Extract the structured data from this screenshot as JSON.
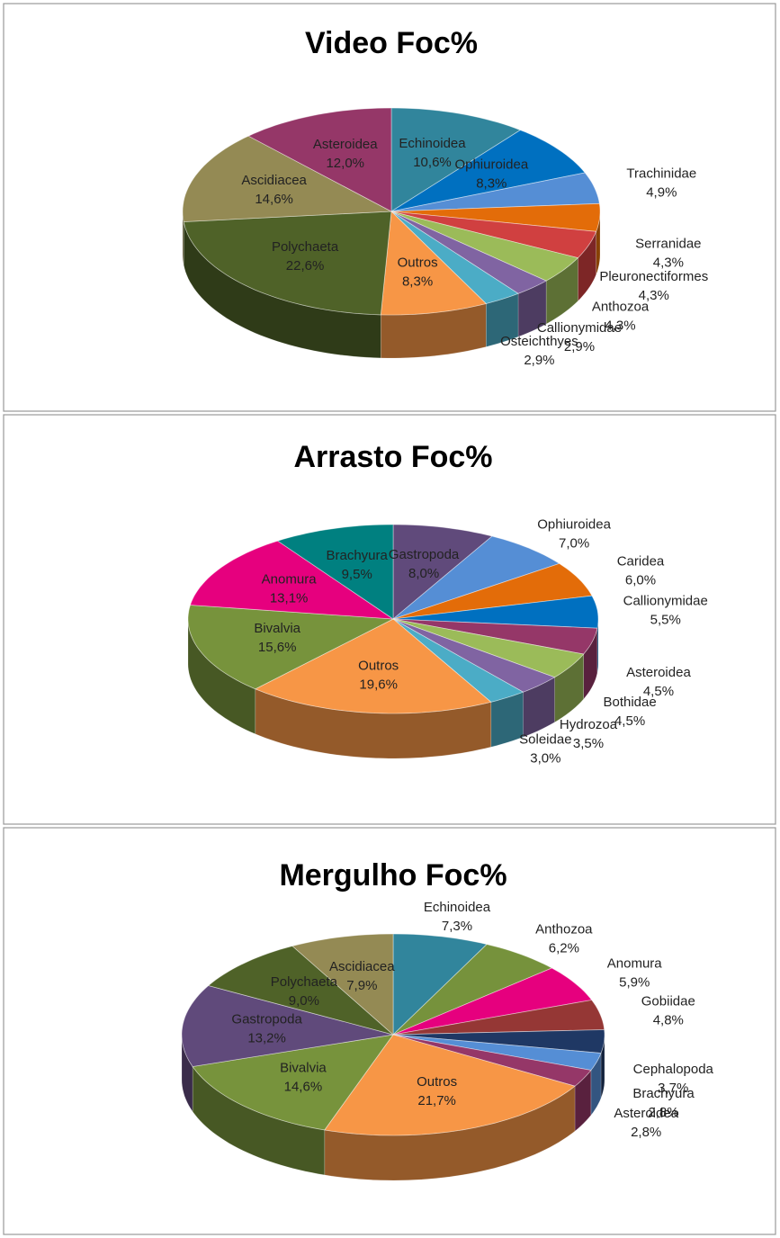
{
  "chart_data": [
    {
      "type": "pie",
      "title": "Video Foc%",
      "categories": [
        "Echinoidea",
        "Ophiuroidea",
        "Trachinidae",
        "Serranidae",
        "Pleuronectiformes",
        "Anthozoa",
        "Callionymidae",
        "Osteichthyes",
        "Outros",
        "Polychaeta",
        "Ascidiacea",
        "Asteroidea"
      ],
      "values": [
        10.6,
        8.3,
        4.9,
        4.3,
        4.3,
        4.3,
        2.9,
        2.9,
        8.3,
        22.6,
        14.6,
        12.0
      ],
      "value_labels": [
        "10,6%",
        "8,3%",
        "4,9%",
        "4,3%",
        "4,3%",
        "4,3%",
        "2,9%",
        "2,9%",
        "8,3%",
        "22,6%",
        "14,6%",
        "12,0%"
      ],
      "colors": [
        "#31859c",
        "#0070c0",
        "#558ed5",
        "#e36c09",
        "#d04040",
        "#9bbb59",
        "#8064a2",
        "#4bacc6",
        "#f79646",
        "#4f6228",
        "#948a54",
        "#953768"
      ]
    },
    {
      "type": "pie",
      "title": "Arrasto Foc%",
      "categories": [
        "Gastropoda",
        "Ophiuroidea",
        "Caridea",
        "Callionymidae",
        "Asteroidea",
        "Bothidae",
        "Hydrozoa",
        "Soleidae",
        "Outros",
        "Bivalvia",
        "Anomura",
        "Brachyura"
      ],
      "values": [
        8.0,
        7.0,
        6.0,
        5.5,
        4.5,
        4.5,
        3.5,
        3.0,
        19.6,
        15.6,
        13.1,
        9.5
      ],
      "value_labels": [
        "8,0%",
        "7,0%",
        "6,0%",
        "5,5%",
        "4,5%",
        "4,5%",
        "3,5%",
        "3,0%",
        "19,6%",
        "15,6%",
        "13,1%",
        "9,5%"
      ],
      "colors": [
        "#604a7b",
        "#558ed5",
        "#e36c09",
        "#0070c0",
        "#953768",
        "#9bbb59",
        "#8064a2",
        "#4bacc6",
        "#f79646",
        "#77933c",
        "#e6007e",
        "#008080"
      ]
    },
    {
      "type": "pie",
      "title": "Mergulho Foc%",
      "categories": [
        "Echinoidea",
        "Anthozoa",
        "Anomura",
        "Gobiidae",
        "Cephalopoda",
        "Brachyura",
        "Asteroidea",
        "Outros",
        "Bivalvia",
        "Gastropoda",
        "Polychaeta",
        "Ascidiacea"
      ],
      "values": [
        7.3,
        6.2,
        5.9,
        4.8,
        3.7,
        2.8,
        2.8,
        21.7,
        14.6,
        13.2,
        9.0,
        7.9
      ],
      "value_labels": [
        "7,3%",
        "6,2%",
        "5,9%",
        "4,8%",
        "3,7%",
        "2,8%",
        "2,8%",
        "21,7%",
        "14,6%",
        "13,2%",
        "9,0%",
        "7,9%"
      ],
      "colors": [
        "#31859c",
        "#76923c",
        "#e6007e",
        "#953735",
        "#1f3864",
        "#558ed5",
        "#953768",
        "#f79646",
        "#77933c",
        "#604a7b",
        "#4f6228",
        "#948a54"
      ]
    }
  ]
}
